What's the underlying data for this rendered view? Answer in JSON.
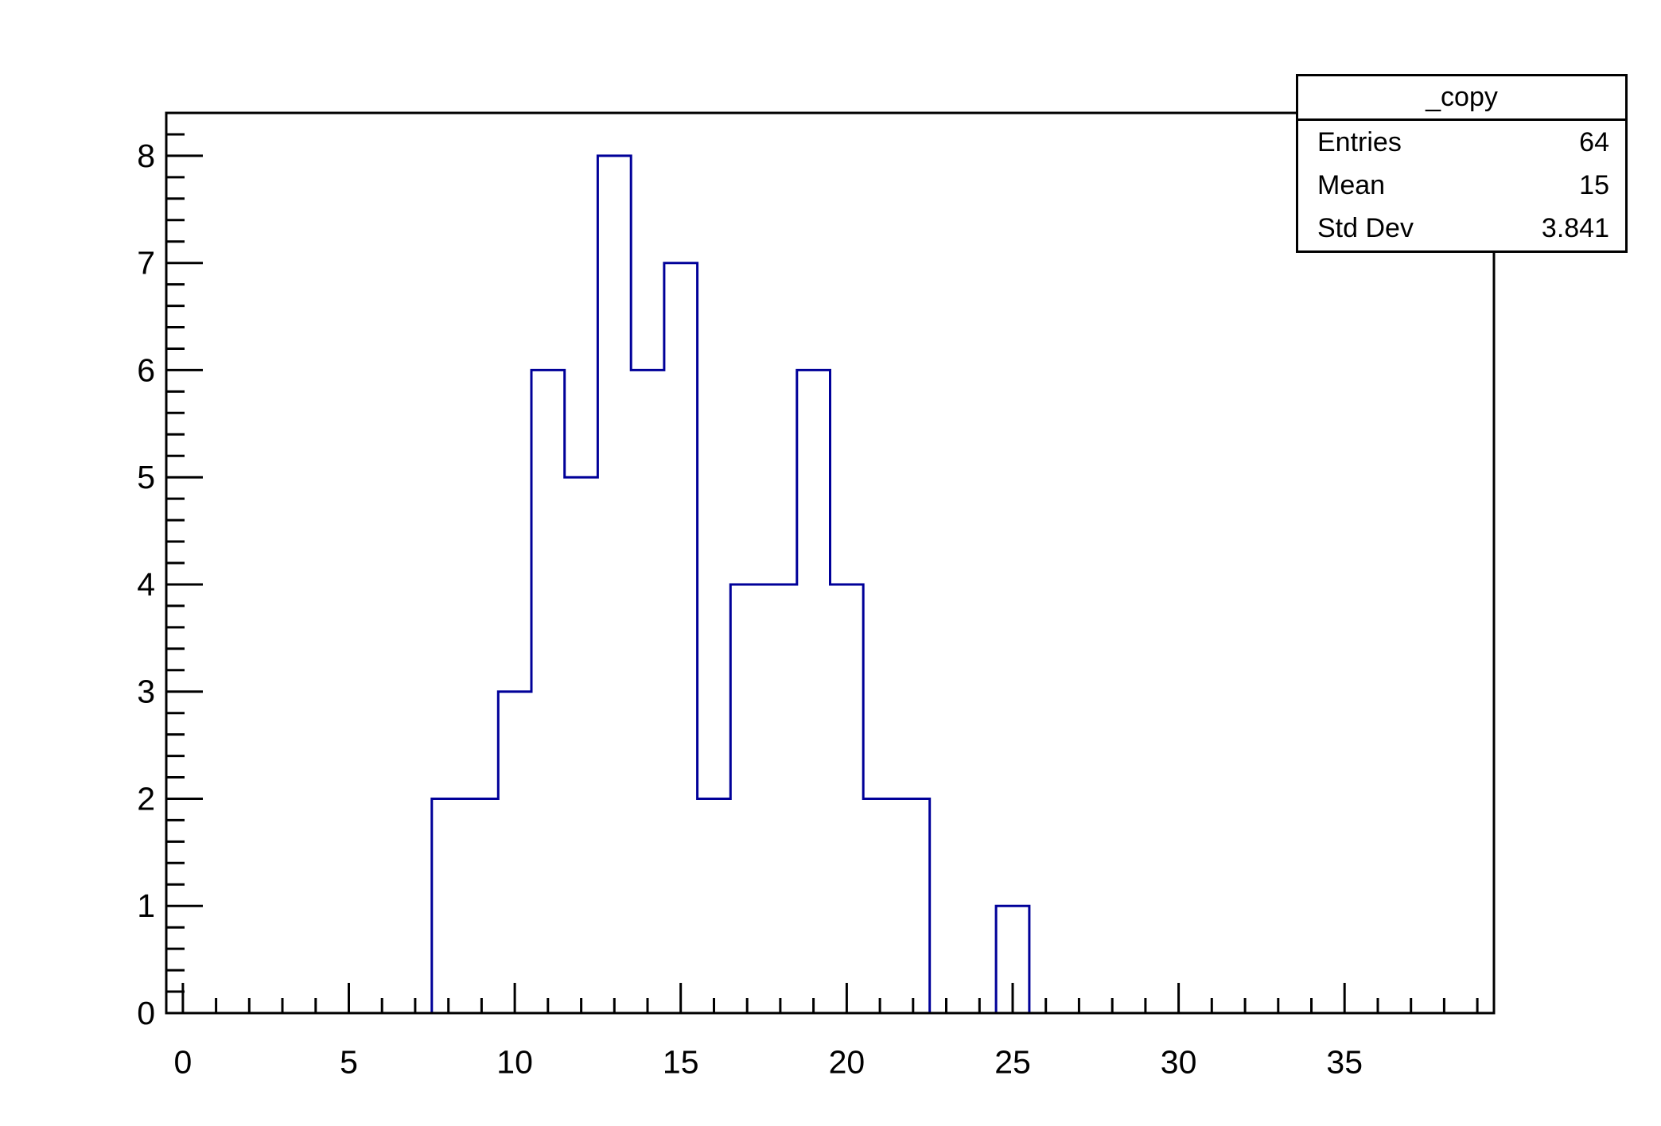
{
  "background_color": "#ffffff",
  "chart_data": {
    "type": "bar",
    "subtype": "step-histogram-outline",
    "title": "",
    "xlabel": "",
    "ylabel": "",
    "x_range": [
      -0.5,
      39.5
    ],
    "y_range": [
      0,
      8.4
    ],
    "bin_width": 1,
    "bin_centers_start": 0,
    "counts": [
      0,
      0,
      0,
      0,
      0,
      0,
      0,
      0,
      2,
      2,
      3,
      6,
      5,
      8,
      6,
      7,
      2,
      4,
      4,
      6,
      4,
      2,
      2,
      0,
      0,
      1,
      0,
      0,
      0,
      0,
      0,
      0,
      0,
      0,
      0,
      0,
      0,
      0,
      0,
      0
    ],
    "nonzero_bins": [
      {
        "center": 8,
        "count": 2
      },
      {
        "center": 9,
        "count": 2
      },
      {
        "center": 10,
        "count": 3
      },
      {
        "center": 11,
        "count": 6
      },
      {
        "center": 12,
        "count": 5
      },
      {
        "center": 13,
        "count": 8
      },
      {
        "center": 14,
        "count": 6
      },
      {
        "center": 15,
        "count": 7
      },
      {
        "center": 16,
        "count": 2
      },
      {
        "center": 17,
        "count": 4
      },
      {
        "center": 18,
        "count": 4
      },
      {
        "center": 19,
        "count": 6
      },
      {
        "center": 20,
        "count": 4
      },
      {
        "center": 21,
        "count": 2
      },
      {
        "center": 22,
        "count": 2
      },
      {
        "center": 25,
        "count": 1
      }
    ],
    "x_major_ticks": [
      0,
      5,
      10,
      15,
      20,
      25,
      30,
      35
    ],
    "x_minor_step": 1,
    "y_major_ticks": [
      0,
      1,
      2,
      3,
      4,
      5,
      6,
      7,
      8
    ],
    "y_minor_step": 0.2,
    "grid": false,
    "legend_position": "none",
    "line_color": "#000099",
    "axis_color": "#000000",
    "label_color": "#000000"
  },
  "stats_box": {
    "title": "_copy",
    "rows": [
      {
        "label": "Entries",
        "value": "64"
      },
      {
        "label": "Mean",
        "value": "15"
      },
      {
        "label": "Std Dev",
        "value": "3.841"
      }
    ]
  }
}
